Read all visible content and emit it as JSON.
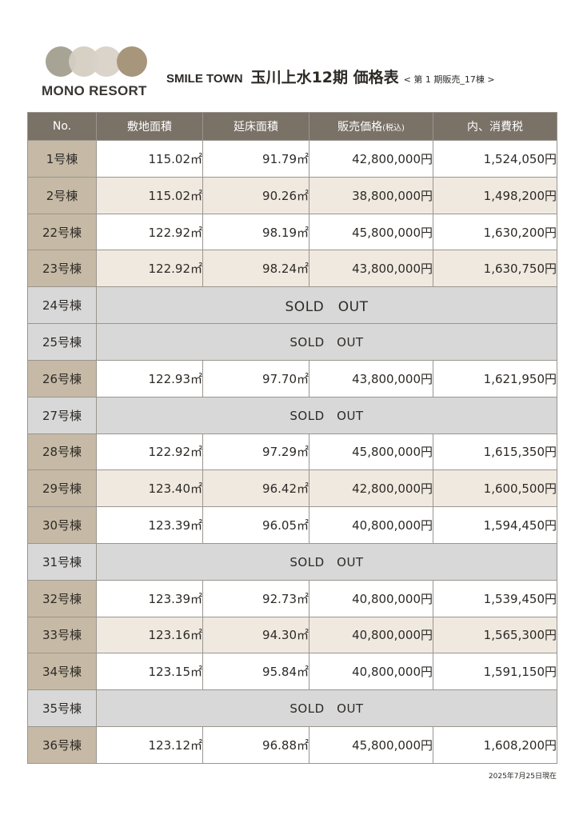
{
  "brand": {
    "name": "MONO RESORT",
    "logo_colors": [
      "#a7a496",
      "#d4cdc2",
      "#d9d2c8",
      "#a7967c"
    ]
  },
  "title": {
    "project": "SMILE TOWN",
    "main": "玉川上水12期 価格表",
    "sub": "< 第 1 期販売_17棟 >"
  },
  "table": {
    "headers": {
      "no": "No.",
      "land": "敷地面積",
      "floor": "延床面積",
      "price": "販売価格",
      "price_note": "(税込)",
      "tax": "内、消費税"
    },
    "rows": [
      {
        "name": "1号棟",
        "land": "115.02㎡",
        "floor": "91.79㎡",
        "price": "42,800,000円",
        "tax": "1,524,050円"
      },
      {
        "name": "2号棟",
        "land": "115.02㎡",
        "floor": "90.26㎡",
        "price": "38,800,000円",
        "tax": "1,498,200円"
      },
      {
        "name": "22号棟",
        "land": "122.92㎡",
        "floor": "98.19㎡",
        "price": "45,800,000円",
        "tax": "1,630,200円"
      },
      {
        "name": "23号棟",
        "land": "122.92㎡",
        "floor": "98.24㎡",
        "price": "43,800,000円",
        "tax": "1,630,750円"
      },
      {
        "name": "24号棟",
        "sold": "SOLD　OUT"
      },
      {
        "name": "25号棟",
        "sold": "SOLD　OUT"
      },
      {
        "name": "26号棟",
        "land": "122.93㎡",
        "floor": "97.70㎡",
        "price": "43,800,000円",
        "tax": "1,621,950円"
      },
      {
        "name": "27号棟",
        "sold": "SOLD　OUT"
      },
      {
        "name": "28号棟",
        "land": "122.92㎡",
        "floor": "97.29㎡",
        "price": "45,800,000円",
        "tax": "1,615,350円"
      },
      {
        "name": "29号棟",
        "land": "123.40㎡",
        "floor": "96.42㎡",
        "price": "42,800,000円",
        "tax": "1,600,500円"
      },
      {
        "name": "30号棟",
        "land": "123.39㎡",
        "floor": "96.05㎡",
        "price": "40,800,000円",
        "tax": "1,594,450円"
      },
      {
        "name": "31号棟",
        "sold": "SOLD　OUT"
      },
      {
        "name": "32号棟",
        "land": "123.39㎡",
        "floor": "92.73㎡",
        "price": "40,800,000円",
        "tax": "1,539,450円"
      },
      {
        "name": "33号棟",
        "land": "123.16㎡",
        "floor": "94.30㎡",
        "price": "40,800,000円",
        "tax": "1,565,300円"
      },
      {
        "name": "34号棟",
        "land": "123.15㎡",
        "floor": "95.84㎡",
        "price": "40,800,000円",
        "tax": "1,591,150円"
      },
      {
        "name": "35号棟",
        "sold": "SOLD　OUT"
      },
      {
        "name": "36号棟",
        "land": "123.12㎡",
        "floor": "96.88㎡",
        "price": "45,800,000円",
        "tax": "1,608,200円"
      }
    ]
  },
  "date": "2025年7月25日現在"
}
